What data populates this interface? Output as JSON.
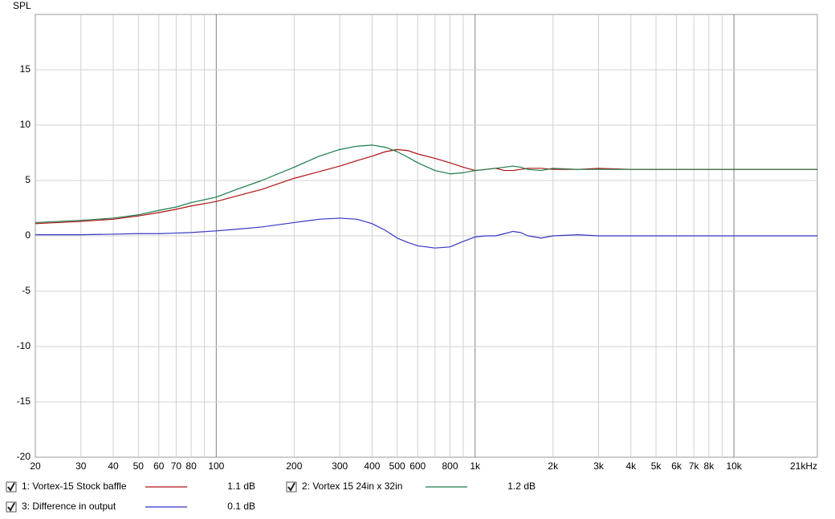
{
  "chart_data": {
    "type": "line",
    "y_label": "SPL",
    "log_x": true,
    "grid": true,
    "x": [
      20,
      30,
      40,
      50,
      60,
      70,
      80,
      100,
      120,
      150,
      200,
      250,
      300,
      350,
      400,
      450,
      500,
      550,
      600,
      700,
      800,
      900,
      1000,
      1100,
      1200,
      1300,
      1400,
      1500,
      1600,
      1800,
      2000,
      2500,
      3000,
      4000,
      5000,
      7000,
      10000,
      15000,
      21000
    ],
    "xlim": [
      20,
      21000
    ],
    "xticks": [
      20,
      30,
      40,
      50,
      60,
      70,
      80,
      100,
      200,
      300,
      400,
      500,
      600,
      800,
      {
        "value": 1000,
        "label": "1k"
      },
      {
        "value": 2000,
        "label": "2k"
      },
      {
        "value": 3000,
        "label": "3k"
      },
      {
        "value": 4000,
        "label": "4k"
      },
      {
        "value": 5000,
        "label": "5k"
      },
      {
        "value": 6000,
        "label": "6k"
      },
      {
        "value": 7000,
        "label": "7k"
      },
      {
        "value": 8000,
        "label": "8k"
      },
      {
        "value": 10000,
        "label": "10k"
      },
      {
        "value": 21000,
        "label": "21kHz"
      }
    ],
    "x_minor_grid": [
      90,
      700,
      900,
      9000
    ],
    "x_major_grid": [
      100,
      1000,
      10000
    ],
    "ylim": [
      -20,
      20
    ],
    "yticks": [
      -20,
      -15,
      -10,
      -5,
      0,
      5,
      10,
      15
    ],
    "series": [
      {
        "name": "1: Vortex-15 Stock baffle",
        "legend_value": "1.1 dB",
        "color": "#b01010",
        "values": [
          1.1,
          1.3,
          1.5,
          1.8,
          2.1,
          2.4,
          2.7,
          3.1,
          3.6,
          4.2,
          5.2,
          5.8,
          6.3,
          6.8,
          7.2,
          7.6,
          7.8,
          7.7,
          7.4,
          7.0,
          6.6,
          6.2,
          5.9,
          6.0,
          6.1,
          5.9,
          5.9,
          6.0,
          6.1,
          6.1,
          6.0,
          6.0,
          6.1,
          6.0,
          6.0,
          6.0,
          6.0,
          6.0,
          6.0
        ]
      },
      {
        "name": "2: Vortex 15 24in x 32in",
        "legend_value": "1.2 dB",
        "color": "#1a7a4a",
        "values": [
          1.2,
          1.4,
          1.6,
          1.9,
          2.3,
          2.6,
          3.0,
          3.5,
          4.2,
          5.0,
          6.2,
          7.2,
          7.8,
          8.1,
          8.2,
          8.0,
          7.6,
          7.1,
          6.6,
          5.9,
          5.6,
          5.7,
          5.9,
          6.0,
          6.1,
          6.2,
          6.3,
          6.2,
          6.0,
          5.9,
          6.1,
          6.0,
          6.0,
          6.0,
          6.0,
          6.0,
          6.0,
          6.0,
          6.0
        ]
      },
      {
        "name": "3: Difference in output",
        "legend_value": "0.1 dB",
        "color": "#3535c5",
        "values": [
          0.1,
          0.1,
          0.15,
          0.2,
          0.2,
          0.25,
          0.3,
          0.45,
          0.6,
          0.8,
          1.2,
          1.5,
          1.6,
          1.5,
          1.1,
          0.5,
          -0.2,
          -0.6,
          -0.9,
          -1.1,
          -1.0,
          -0.5,
          -0.1,
          0.0,
          0.0,
          0.2,
          0.4,
          0.3,
          0.0,
          -0.2,
          0.0,
          0.1,
          0.0,
          0.0,
          0.0,
          0.0,
          0.0,
          0.0,
          0.0
        ]
      }
    ]
  }
}
